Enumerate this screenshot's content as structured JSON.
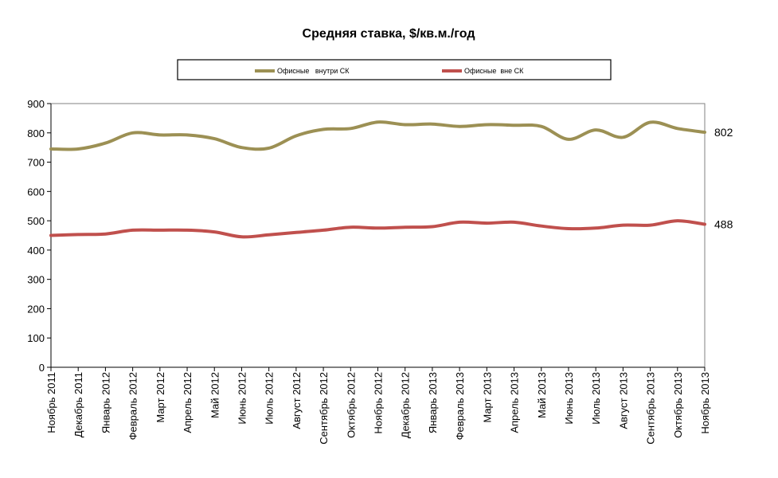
{
  "chart_data": {
    "type": "line",
    "title": "Средняя ставка, $/кв.м./год",
    "xlabel": "",
    "ylabel": "",
    "ylim": [
      0,
      900
    ],
    "yticks": [
      0,
      100,
      200,
      300,
      400,
      500,
      600,
      700,
      800,
      900
    ],
    "grid": false,
    "legend_position": "top",
    "categories": [
      "Ноябрь 2011",
      "Декабрь 2011",
      "Январь 2012",
      "Февраль 2012",
      "Март 2012",
      "Апрель 2012",
      "Май 2012",
      "Июнь 2012",
      "Июль 2012",
      "Август 2012",
      "Сентябрь 2012",
      "Октябрь 2012",
      "Ноябрь 2012",
      "Декабрь 2012",
      "Январь 2013",
      "Февраль 2013",
      "Март 2013",
      "Апрель 2013",
      "Май 2013",
      "Июнь 2013",
      "Июль 2013",
      "Август 2013",
      "Сентябрь 2013",
      "Октябрь 2013",
      "Ноябрь 2013"
    ],
    "series": [
      {
        "name": "Офисные   внутри СК",
        "color": "#9C9054",
        "values": [
          745,
          745,
          765,
          800,
          793,
          793,
          780,
          750,
          748,
          790,
          812,
          815,
          837,
          828,
          830,
          822,
          828,
          826,
          822,
          778,
          810,
          785,
          836,
          815,
          802
        ],
        "end_label": "802"
      },
      {
        "name": "Офисные  вне СК",
        "color": "#C0504D",
        "values": [
          450,
          453,
          455,
          468,
          468,
          468,
          462,
          445,
          452,
          460,
          468,
          478,
          475,
          478,
          480,
          495,
          492,
          495,
          482,
          473,
          475,
          485,
          485,
          500,
          488
        ],
        "end_label": "488"
      }
    ]
  }
}
